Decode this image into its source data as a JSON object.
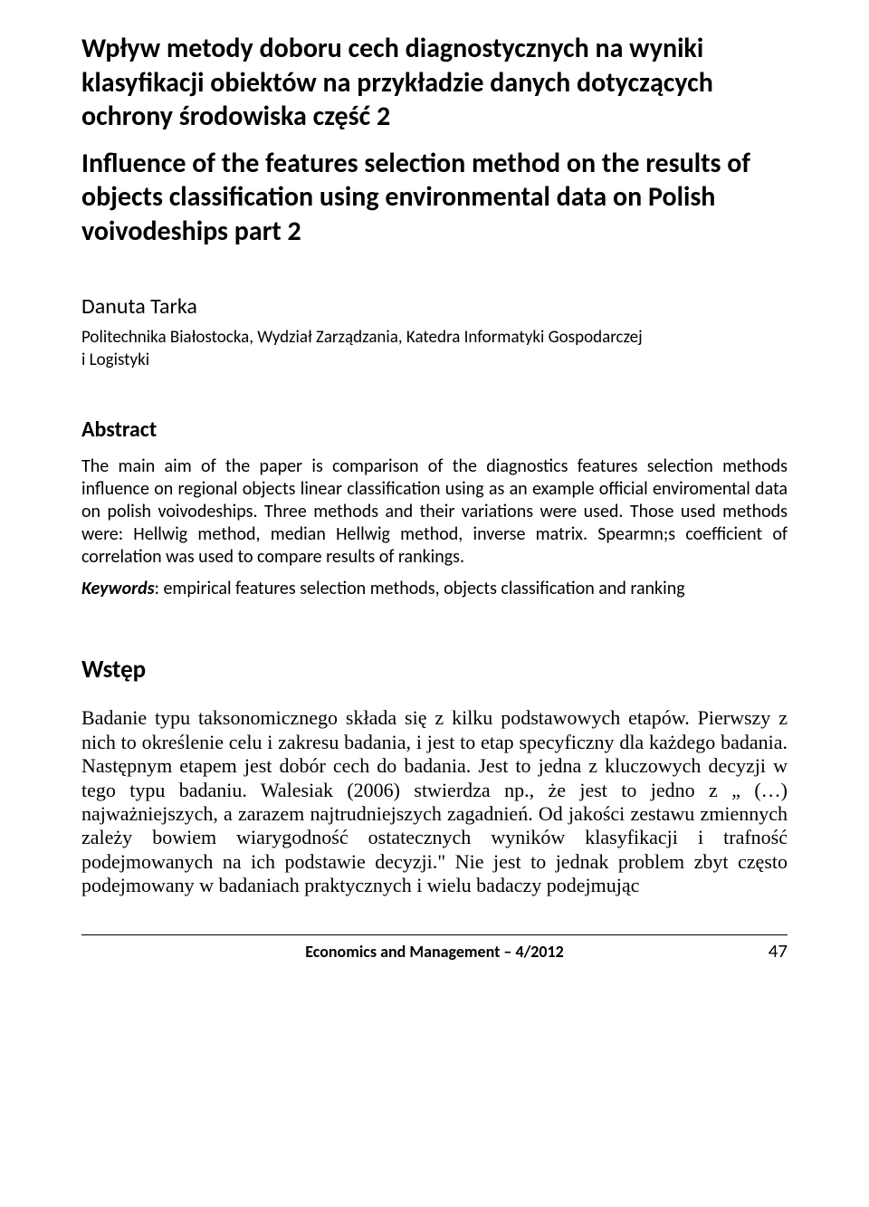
{
  "title_pl": "Wpływ metody doboru cech diagnostycznych na wyniki klasyfikacji obiektów na przykładzie danych dotyczących ochrony środowiska część 2",
  "title_en": "Influence of the features selection method on the results of objects classification using environmental data on Polish voivodeships part 2",
  "author": "Danuta Tarka",
  "affiliation_line1": "Politechnika Białostocka, Wydział Zarządzania, Katedra Informatyki Gospodarczej",
  "affiliation_line2": "i Logistyki",
  "abstract_heading": "Abstract",
  "abstract_body": "The main aim of the paper is comparison of the diagnostics features selection methods influence on regional objects linear classification using as an example official enviromental data on polish voivodeships. Three methods and their variations were used. Those used methods were: Hellwig method, median Hellwig method, inverse matrix. Spearmn;s coefficient of correlation was used to compare results of rankings.",
  "keywords_label": "Keywords",
  "keywords_text": ": empirical features selection methods, objects classification and ranking",
  "section_heading": "Wstęp",
  "body_text": "Badanie typu taksonomicznego składa się z kilku podstawowych etapów. Pierwszy z nich to określenie celu i zakresu badania, i jest to etap specyficzny dla każdego badania. Następnym etapem jest dobór cech do badania. Jest to jedna z kluczowych decyzji w tego typu badaniu. Walesiak (2006) stwierdza np., że jest to jedno z „ (…) najważniejszych, a zarazem najtrudniejszych zagadnień. Od jakości zestawu zmiennych zależy bowiem wiarygodność ostatecznych wyników klasyfikacji i trafność podejmowanych na ich podstawie decyzji.\" Nie jest to jednak problem zbyt często podejmowany w badaniach praktycznych i wielu badaczy podejmując",
  "footer_center": "Economics and Management – 4/2012",
  "footer_page": "47"
}
